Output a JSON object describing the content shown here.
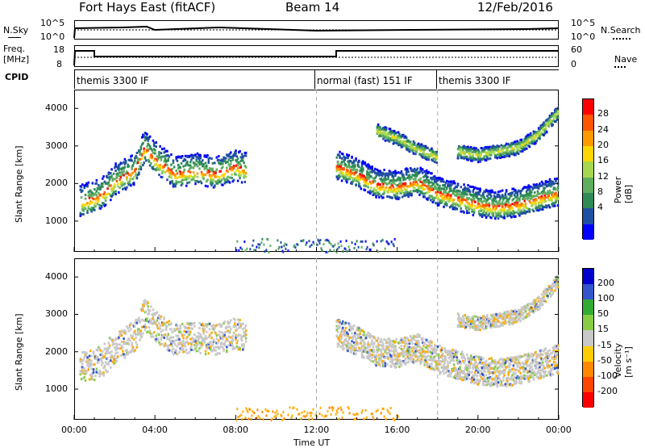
{
  "header": {
    "radar": "Fort Hays East (fitACF)",
    "beam": "Beam 14",
    "date": "12/Feb/2016"
  },
  "panels": {
    "nsky": {
      "left_label": "N.Sky",
      "right_label": "N.Search",
      "left_ticks": [
        "10^5",
        "10^0"
      ],
      "right_ticks": [
        "10^5",
        "10^0"
      ]
    },
    "freq": {
      "left_label_1": "Freq.",
      "left_label_2": "[MHz]",
      "right_label": "Nave",
      "left_ticks": [
        "18",
        "8"
      ],
      "right_ticks": [
        "60",
        "0"
      ]
    },
    "cpid": {
      "label": "CPID",
      "modes": [
        "themis 3300 IF",
        "normal (fast) 151 IF",
        "themis 3300 IF"
      ]
    }
  },
  "axes": {
    "ylabel": "Slant Range [km]",
    "xlabel": "Time UT",
    "xticks": [
      "00:00",
      "04:00",
      "08:00",
      "12:00",
      "16:00",
      "20:00",
      "00:00"
    ],
    "yticks": [
      "4000",
      "3000",
      "2000",
      "1000"
    ]
  },
  "colorbars": {
    "power": {
      "title": "Power [dB]",
      "ticks": [
        "28",
        "24",
        "20",
        "16",
        "12",
        "8",
        "4"
      ],
      "colors": [
        "#0000ff",
        "#1f4fa0",
        "#2e8b57",
        "#5fae5f",
        "#a6d84f",
        "#ffd700",
        "#ff9900",
        "#ff5500",
        "#ff0000"
      ]
    },
    "velocity": {
      "title": "Velocity [m s⁻¹]",
      "ticks": [
        "200",
        "100",
        "50",
        "15",
        "-15",
        "-50",
        "-100",
        "-200"
      ],
      "colors": [
        "#0000cc",
        "#3355cc",
        "#33aa33",
        "#88cc44",
        "#c8c8c8",
        "#ffcc00",
        "#ff8800",
        "#ff4400",
        "#ff0000"
      ]
    }
  },
  "chart_data": [
    {
      "type": "heatmap",
      "title": "Power",
      "xlabel": "Time UT",
      "ylabel": "Slant Range [km]",
      "xlim": [
        0,
        24
      ],
      "ylim": [
        180,
        4500
      ],
      "ridges": [
        {
          "x": [
            0.3,
            1,
            1.5,
            2,
            3,
            3.5,
            4,
            5,
            6,
            7,
            8,
            8.5
          ],
          "y": [
            1550,
            1650,
            1800,
            2100,
            2400,
            3000,
            2700,
            2300,
            2400,
            2300,
            2500,
            2400
          ]
        },
        {
          "x": [
            13,
            14,
            15,
            16,
            17,
            18,
            19,
            20,
            21,
            22,
            23,
            24
          ],
          "y": [
            2500,
            2300,
            2000,
            1950,
            2100,
            1800,
            1650,
            1500,
            1420,
            1500,
            1650,
            1800
          ]
        },
        {
          "x": [
            15,
            16,
            17,
            18
          ],
          "y": [
            3400,
            3200,
            2900,
            2700
          ]
        },
        {
          "x": [
            19,
            20,
            21,
            22,
            23,
            24
          ],
          "y": [
            2850,
            2750,
            2850,
            2950,
            3300,
            3900
          ]
        }
      ]
    },
    {
      "type": "heatmap",
      "title": "Velocity",
      "xlabel": "Time UT",
      "ylabel": "Slant Range [km]",
      "xlim": [
        0,
        24
      ],
      "ylim": [
        180,
        4500
      ],
      "ridges": [
        {
          "x": [
            0.3,
            1,
            1.5,
            2,
            3,
            3.5,
            4,
            5,
            6,
            7,
            8,
            8.5
          ],
          "y": [
            1550,
            1650,
            1800,
            2100,
            2400,
            3000,
            2700,
            2300,
            2400,
            2300,
            2500,
            2400
          ]
        },
        {
          "x": [
            13,
            14,
            15,
            16,
            17,
            18,
            19,
            20,
            21,
            22,
            23,
            24
          ],
          "y": [
            2500,
            2300,
            2000,
            1950,
            2100,
            1800,
            1650,
            1500,
            1420,
            1500,
            1650,
            1800
          ]
        },
        {
          "x": [
            19,
            20,
            21,
            22,
            23,
            24
          ],
          "y": [
            2850,
            2750,
            2850,
            2950,
            3300,
            3900
          ]
        }
      ]
    }
  ]
}
